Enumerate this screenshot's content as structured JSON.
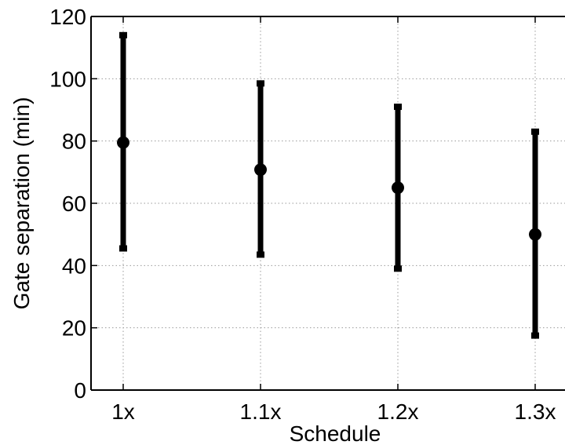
{
  "chart_data": {
    "type": "errorbar",
    "title": "",
    "xlabel": "Schedule",
    "ylabel": "Gate separation (min)",
    "categories": [
      "1x",
      "1.1x",
      "1.2x",
      "1.3x"
    ],
    "series": [
      {
        "mean": [
          79.5,
          70.8,
          65.0,
          50.0
        ],
        "lower": [
          45.5,
          43.5,
          39.0,
          17.5
        ],
        "upper": [
          114.0,
          98.5,
          91.0,
          83.0
        ]
      }
    ],
    "ylim": [
      0,
      120
    ],
    "yticks": [
      0,
      20,
      40,
      60,
      80,
      100,
      120
    ],
    "grid": true,
    "legend": "none",
    "color": "#000000"
  }
}
